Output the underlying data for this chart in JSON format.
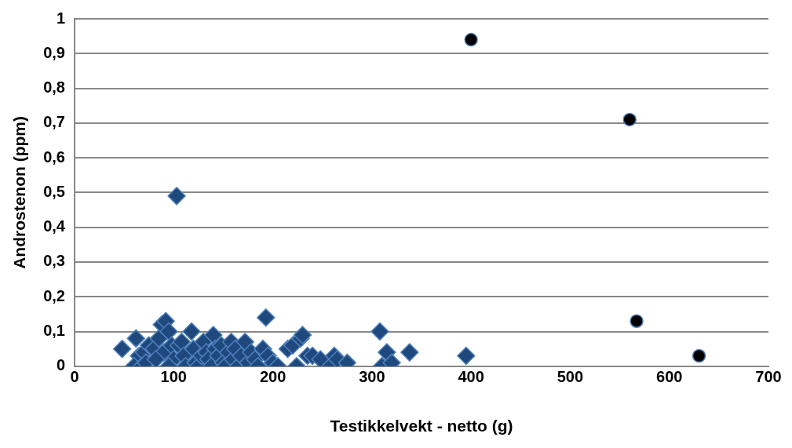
{
  "chart_data": {
    "type": "scatter",
    "xlabel": "Testikkelvekt - netto (g)",
    "ylabel": "Androstenon (ppm)",
    "xlim": [
      0,
      700
    ],
    "xticks": [
      0,
      100,
      200,
      300,
      400,
      500,
      600,
      700
    ],
    "ylim": [
      0,
      1
    ],
    "yticks": [
      {
        "value": 0,
        "label": "0"
      },
      {
        "value": 0.1,
        "label": "0,1"
      },
      {
        "value": 0.2,
        "label": "0,2"
      },
      {
        "value": 0.3,
        "label": "0,3"
      },
      {
        "value": 0.4,
        "label": "0,4"
      },
      {
        "value": 0.5,
        "label": "0,5"
      },
      {
        "value": 0.6,
        "label": "0,6"
      },
      {
        "value": 0.7,
        "label": "0,7"
      },
      {
        "value": 0.8,
        "label": "0,8"
      },
      {
        "value": 0.9,
        "label": "0,9"
      },
      {
        "value": 1,
        "label": "1"
      }
    ],
    "grid": "y",
    "legend": false,
    "series": [
      {
        "color": "#1f497d",
        "marker": "diamond",
        "x": [
          48,
          62,
          65,
          70,
          75,
          60,
          68,
          72,
          80,
          85,
          88,
          92,
          95,
          90,
          98,
          100,
          82,
          95,
          105,
          108,
          103,
          110,
          112,
          118,
          120,
          122,
          125,
          128,
          130,
          133,
          135,
          138,
          140,
          142,
          145,
          148,
          150,
          152,
          155,
          158,
          160,
          162,
          165,
          168,
          172,
          175,
          178,
          182,
          185,
          190,
          193,
          195,
          200,
          205,
          215,
          220,
          224,
          228,
          230,
          235,
          240,
          248,
          258,
          262,
          265,
          275,
          308,
          310,
          315,
          320,
          338,
          395
        ],
        "values": [
          0.05,
          0.08,
          0.03,
          0.04,
          0.06,
          0.0,
          0.0,
          0.01,
          0.05,
          0.08,
          0.12,
          0.13,
          0.1,
          0.04,
          0.06,
          0.02,
          0.02,
          0.0,
          0.06,
          0.07,
          0.49,
          0.03,
          0.0,
          0.1,
          0.05,
          0.01,
          0.0,
          0.03,
          0.07,
          0.04,
          0.02,
          0.0,
          0.09,
          0.05,
          0.03,
          0.06,
          0.01,
          0.0,
          0.04,
          0.07,
          0.02,
          0.05,
          0.0,
          0.03,
          0.07,
          0.01,
          0.04,
          0.02,
          0.0,
          0.05,
          0.14,
          0.03,
          0.01,
          0.0,
          0.05,
          0.06,
          0.0,
          0.08,
          0.09,
          0.03,
          0.03,
          0.02,
          0.0,
          0.03,
          0.02,
          0.01,
          0.1,
          0.0,
          0.04,
          0.01,
          0.04,
          0.03
        ]
      },
      {
        "color": "#000000",
        "marker": "circle",
        "x": [
          400,
          560,
          567,
          630
        ],
        "values": [
          0.94,
          0.71,
          0.13,
          0.03
        ]
      }
    ]
  }
}
